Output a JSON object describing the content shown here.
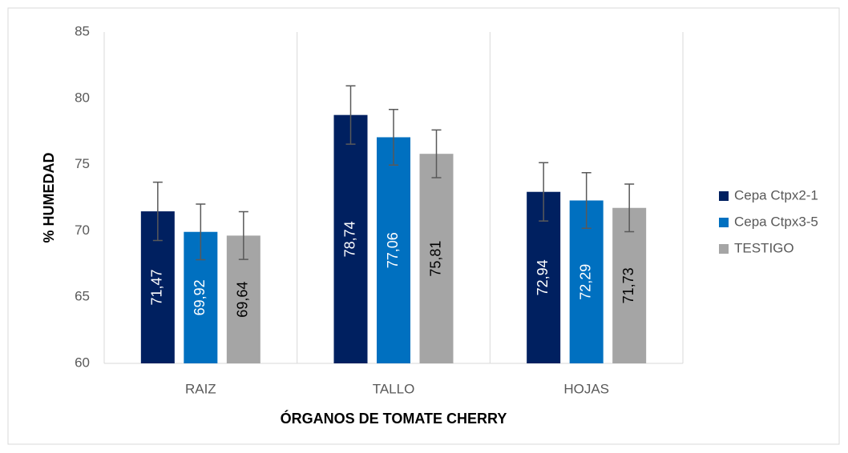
{
  "chart_data": {
    "type": "bar",
    "xlabel": "ÓRGANOS DE TOMATE CHERRY",
    "ylabel": "% HUMEDAD",
    "categories": [
      "RAIZ",
      "TALLO",
      "HOJAS"
    ],
    "series": [
      {
        "name": "Cepa Ctpx2-1",
        "color": "#002060",
        "label_color": "#ffffff",
        "values": [
          71.47,
          78.74,
          72.94
        ],
        "value_labels": [
          "71,47",
          "78,74",
          "72,94"
        ],
        "errors": [
          2.2,
          2.2,
          2.2
        ]
      },
      {
        "name": "Cepa Ctpx3-5",
        "color": "#0070c0",
        "label_color": "#ffffff",
        "values": [
          69.92,
          77.06,
          72.29
        ],
        "value_labels": [
          "69,92",
          "77,06",
          "72,29"
        ],
        "errors": [
          2.1,
          2.1,
          2.1
        ]
      },
      {
        "name": "TESTIGO",
        "color": "#a5a5a5",
        "label_color": "#000000",
        "values": [
          69.64,
          75.81,
          71.73
        ],
        "value_labels": [
          "69,64",
          "75,81",
          "71,73"
        ],
        "errors": [
          1.8,
          1.8,
          1.8
        ]
      }
    ],
    "ylim": [
      60,
      85
    ],
    "yticks": [
      60,
      65,
      70,
      75,
      80,
      85
    ],
    "legend": "right"
  }
}
